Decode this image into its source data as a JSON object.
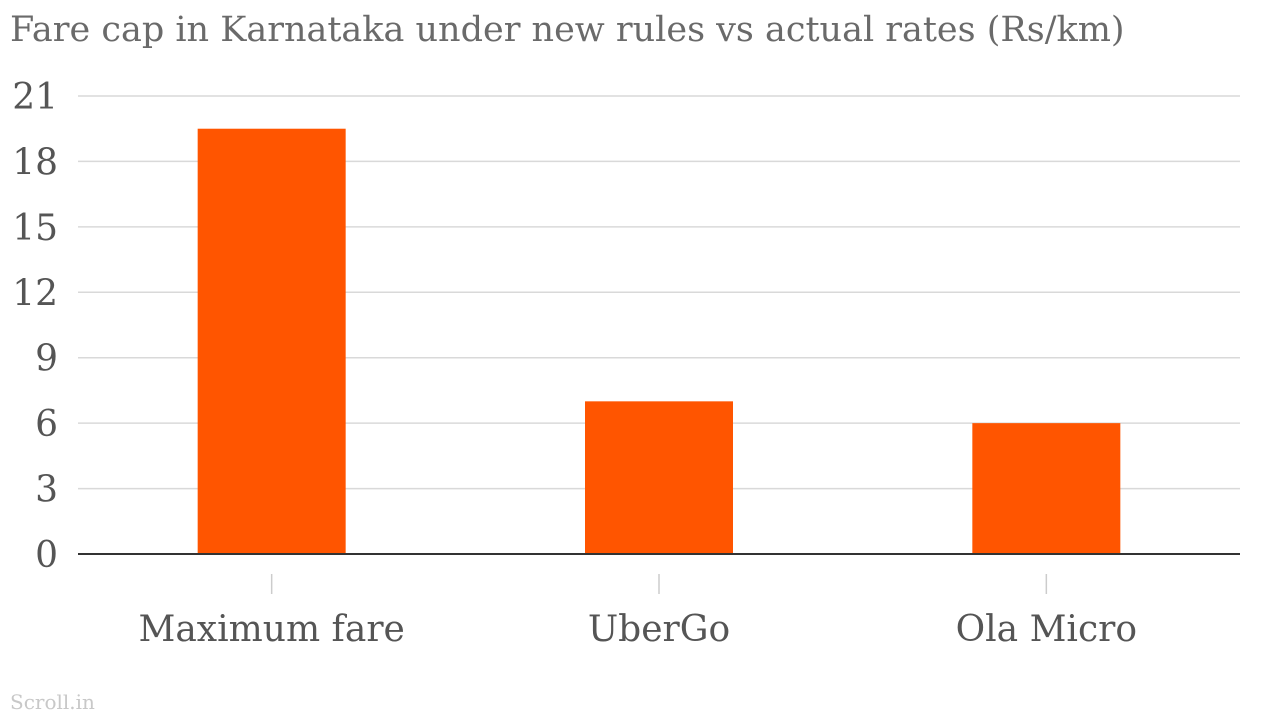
{
  "chart_data": {
    "type": "bar",
    "title": "Fare cap in Karnataka under new rules vs actual rates (Rs/km)",
    "xlabel": "",
    "ylabel": "",
    "categories": [
      "Maximum fare",
      "UberGo",
      "Ola Micro"
    ],
    "values": [
      19.5,
      7,
      6
    ],
    "ylim": [
      0,
      21
    ],
    "yticks": [
      0,
      3,
      6,
      9,
      12,
      15,
      18,
      21
    ],
    "grid": true,
    "bar_color": "#ff5500",
    "grid_color": "#d9d9d9",
    "axis_color": "#333333"
  },
  "source": "Scroll.in"
}
